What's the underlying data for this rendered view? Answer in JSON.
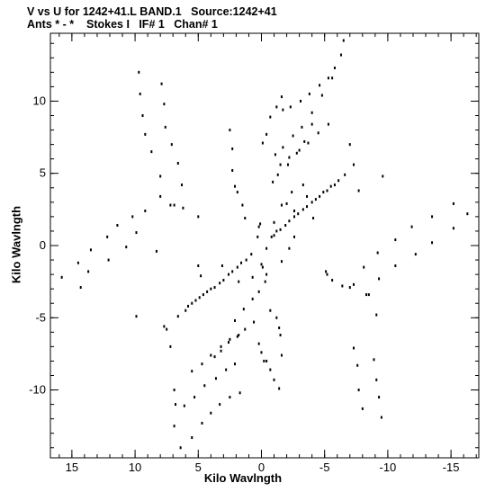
{
  "header": {
    "line1": "V vs U for 1242+41.L BAND.1   Source:1242+41",
    "line2": "Ants * - *    Stokes I   IF# 1   Chan# 1"
  },
  "chart_data": {
    "type": "scatter",
    "title": "V vs U for 1242+41.L BAND.1   Source:1242+41",
    "subtitle": "Ants * - *    Stokes I   IF# 1   Chan# 1",
    "xlabel": "Kilo Wavlngth",
    "ylabel": "Kilo Wavlngth",
    "xlim": [
      16.7,
      -17.2
    ],
    "ylim": [
      -14.7,
      14.7
    ],
    "x_ticks": [
      15,
      10,
      5,
      0,
      -5,
      -10,
      -15
    ],
    "y_ticks": [
      10,
      5,
      0,
      -5,
      -10
    ],
    "grid": false,
    "marker_color": "#000000",
    "series": [
      {
        "points": [
          [
            15.8,
            -2.2
          ],
          [
            14.3,
            -2.9
          ],
          [
            13.7,
            -1.8
          ],
          [
            12.1,
            -1.0
          ],
          [
            10.7,
            -0.1
          ],
          [
            9.9,
            0.9
          ],
          [
            8.3,
            -0.4
          ],
          [
            14.5,
            -1.2
          ],
          [
            13.5,
            -0.3
          ],
          [
            12.2,
            0.6
          ],
          [
            11.4,
            1.4
          ],
          [
            10.2,
            2.0
          ],
          [
            9.2,
            2.4
          ],
          [
            8.0,
            3.4
          ],
          [
            9.7,
            12.0
          ],
          [
            9.6,
            10.5
          ],
          [
            9.4,
            9.0
          ],
          [
            9.2,
            7.7
          ],
          [
            8.7,
            6.5
          ],
          [
            8.0,
            4.8
          ],
          [
            7.9,
            11.2
          ],
          [
            7.7,
            9.8
          ],
          [
            7.6,
            8.2
          ],
          [
            7.1,
            7.0
          ],
          [
            6.6,
            5.7
          ],
          [
            6.3,
            4.2
          ],
          [
            7.2,
            2.8
          ],
          [
            6.9,
            2.8
          ],
          [
            6.2,
            2.6
          ],
          [
            5.0,
            2.0
          ],
          [
            -6.3,
            13.2
          ],
          [
            -5.8,
            12.3
          ],
          [
            -5.3,
            11.6
          ],
          [
            -4.6,
            11.1
          ],
          [
            -3.8,
            10.5
          ],
          [
            -3.1,
            10.0
          ],
          [
            -2.3,
            9.6
          ],
          [
            -1.7,
            9.4
          ],
          [
            -6.5,
            14.2
          ],
          [
            -5.6,
            11.6
          ],
          [
            -4.8,
            10.4
          ],
          [
            -4.0,
            9.2
          ],
          [
            -3.2,
            8.2
          ],
          [
            -2.5,
            7.6
          ],
          [
            -1.7,
            6.8
          ],
          [
            -1.1,
            6.3
          ],
          [
            -4.0,
            8.4
          ],
          [
            -3.4,
            7.2
          ],
          [
            -2.8,
            6.4
          ],
          [
            -2.1,
            5.6
          ],
          [
            -1.3,
            4.9
          ],
          [
            -0.9,
            4.4
          ],
          [
            -5.3,
            8.4
          ],
          [
            -4.5,
            7.8
          ],
          [
            -3.7,
            7.1
          ],
          [
            -3.0,
            6.6
          ],
          [
            -2.2,
            6.1
          ],
          [
            -1.5,
            5.6
          ],
          [
            -7.0,
            7.0
          ],
          [
            -7.3,
            5.6
          ],
          [
            -7.7,
            3.8
          ],
          [
            -9.6,
            4.8
          ],
          [
            -15.2,
            2.9
          ],
          [
            -13.5,
            2.0
          ],
          [
            -11.9,
            1.3
          ],
          [
            -10.6,
            0.4
          ],
          [
            -9.2,
            -0.5
          ],
          [
            -8.1,
            -1.5
          ],
          [
            -16.3,
            2.2
          ],
          [
            -15.2,
            1.2
          ],
          [
            -13.5,
            0.2
          ],
          [
            -12.2,
            -0.6
          ],
          [
            -10.6,
            -1.4
          ],
          [
            -9.3,
            -2.3
          ],
          [
            -7.3,
            -2.7
          ],
          [
            -7.0,
            -2.9
          ],
          [
            -6.4,
            -2.8
          ],
          [
            -5.2,
            -2.0
          ],
          [
            -8.3,
            -3.4
          ],
          [
            -8.5,
            -3.4
          ],
          [
            -9.1,
            -4.8
          ],
          [
            -9.5,
            -11.9
          ],
          [
            -9.3,
            -10.5
          ],
          [
            -9.1,
            -9.3
          ],
          [
            -8.9,
            -7.9
          ],
          [
            -8.0,
            -11.3
          ],
          [
            -7.7,
            -10.0
          ],
          [
            -7.6,
            -8.3
          ],
          [
            -7.3,
            -7.1
          ],
          [
            6.4,
            -14.0
          ],
          [
            5.5,
            -13.3
          ],
          [
            4.7,
            -12.3
          ],
          [
            4.0,
            -11.6
          ],
          [
            3.3,
            -11.0
          ],
          [
            2.5,
            -10.5
          ],
          [
            1.7,
            -10.2
          ],
          [
            6.9,
            -12.5
          ],
          [
            6.1,
            -11.1
          ],
          [
            5.3,
            -10.5
          ],
          [
            4.5,
            -9.7
          ],
          [
            3.6,
            -9.2
          ],
          [
            2.8,
            -8.6
          ],
          [
            2.1,
            -8.2
          ],
          [
            3.7,
            -7.7
          ],
          [
            3.2,
            -7.3
          ],
          [
            2.6,
            -6.7
          ],
          [
            1.9,
            -6.3
          ],
          [
            1.3,
            -5.8
          ],
          [
            0.6,
            -5.3
          ],
          [
            5.5,
            -8.7
          ],
          [
            4.7,
            -8.2
          ],
          [
            4.0,
            -7.6
          ],
          [
            3.2,
            -7.0
          ],
          [
            2.5,
            -6.5
          ],
          [
            1.8,
            -6.2
          ],
          [
            0.2,
            -6.8
          ],
          [
            0.0,
            -7.4
          ],
          [
            -0.4,
            -8.0
          ],
          [
            -0.7,
            -8.6
          ],
          [
            -1.0,
            -9.3
          ],
          [
            -1.4,
            -9.9
          ],
          [
            -0.2,
            -8.0
          ],
          [
            6.8,
            -11.0
          ],
          [
            6.9,
            -10.0
          ],
          [
            7.7,
            -5.6
          ],
          [
            7.2,
            -7.0
          ],
          [
            7.5,
            -5.8
          ],
          [
            9.9,
            -4.9
          ],
          [
            6.6,
            -4.9
          ],
          [
            6.0,
            -4.5
          ],
          [
            5.5,
            -4.0
          ],
          [
            4.9,
            -3.6
          ],
          [
            4.3,
            -3.2
          ],
          [
            3.7,
            -2.9
          ],
          [
            3.0,
            -2.4
          ],
          [
            2.3,
            -1.8
          ],
          [
            1.6,
            -1.2
          ],
          [
            0.8,
            -0.6
          ],
          [
            -0.8,
            0.6
          ],
          [
            -1.5,
            1.1
          ],
          [
            -2.2,
            1.7
          ],
          [
            -2.9,
            2.2
          ],
          [
            -3.6,
            2.7
          ],
          [
            -4.3,
            3.2
          ],
          [
            -4.9,
            3.7
          ],
          [
            -5.5,
            4.1
          ],
          [
            -6.1,
            4.5
          ],
          [
            -6.6,
            4.9
          ],
          [
            5.8,
            -4.2
          ],
          [
            5.2,
            -3.8
          ],
          [
            4.6,
            -3.4
          ],
          [
            4.0,
            -3.0
          ],
          [
            3.3,
            -2.6
          ],
          [
            2.6,
            -2.0
          ],
          [
            1.9,
            -1.5
          ],
          [
            1.2,
            -1.0
          ],
          [
            -1.2,
            1.0
          ],
          [
            -1.9,
            1.4
          ],
          [
            -2.6,
            2.0
          ],
          [
            -3.3,
            2.5
          ],
          [
            -4.0,
            3.0
          ],
          [
            -4.6,
            3.4
          ],
          [
            -5.2,
            3.8
          ],
          [
            -5.8,
            4.2
          ],
          [
            2.1,
            -5.2
          ],
          [
            1.4,
            -4.4
          ],
          [
            0.7,
            -3.7
          ],
          [
            0.2,
            -3.2
          ],
          [
            -0.3,
            -2.5
          ],
          [
            -0.4,
            -2.0
          ],
          [
            -0.1,
            -1.5
          ],
          [
            0.0,
            -1.3
          ],
          [
            0.1,
            1.5
          ],
          [
            0.2,
            1.3
          ],
          [
            0.3,
            0.6
          ],
          [
            -1.0,
            1.6
          ],
          [
            -2.0,
            2.9
          ],
          [
            -2.6,
            2.4
          ],
          [
            -2.2,
            -0.2
          ],
          [
            -1.6,
            -1.1
          ],
          [
            0.7,
            -2.2
          ],
          [
            1.8,
            -2.5
          ],
          [
            4.8,
            -2.1
          ],
          [
            5.0,
            -1.4
          ],
          [
            -5.1,
            -1.8
          ],
          [
            -5.6,
            -2.4
          ],
          [
            3.1,
            -1.4
          ],
          [
            -1.6,
            10.3
          ],
          [
            -1.2,
            9.6
          ],
          [
            -0.7,
            8.9
          ],
          [
            -0.4,
            7.7
          ],
          [
            -0.1,
            7.1
          ],
          [
            2.5,
            8.0
          ],
          [
            2.3,
            6.7
          ],
          [
            2.3,
            5.2
          ],
          [
            2.1,
            4.1
          ],
          [
            1.9,
            3.7
          ],
          [
            1.5,
            2.8
          ],
          [
            1.3,
            1.9
          ],
          [
            -1.0,
            0.7
          ],
          [
            -1.6,
            2.8
          ],
          [
            -2.4,
            3.7
          ],
          [
            -3.3,
            4.2
          ],
          [
            -3.6,
            3.4
          ],
          [
            -4.1,
            1.9
          ],
          [
            -2.6,
            0.6
          ],
          [
            -0.4,
            -0.2
          ],
          [
            -0.7,
            -4.5
          ],
          [
            -1.2,
            -5.0
          ],
          [
            -1.4,
            -5.7
          ],
          [
            -1.5,
            -6.2
          ],
          [
            -1.6,
            -7.6
          ]
        ]
      }
    ]
  }
}
